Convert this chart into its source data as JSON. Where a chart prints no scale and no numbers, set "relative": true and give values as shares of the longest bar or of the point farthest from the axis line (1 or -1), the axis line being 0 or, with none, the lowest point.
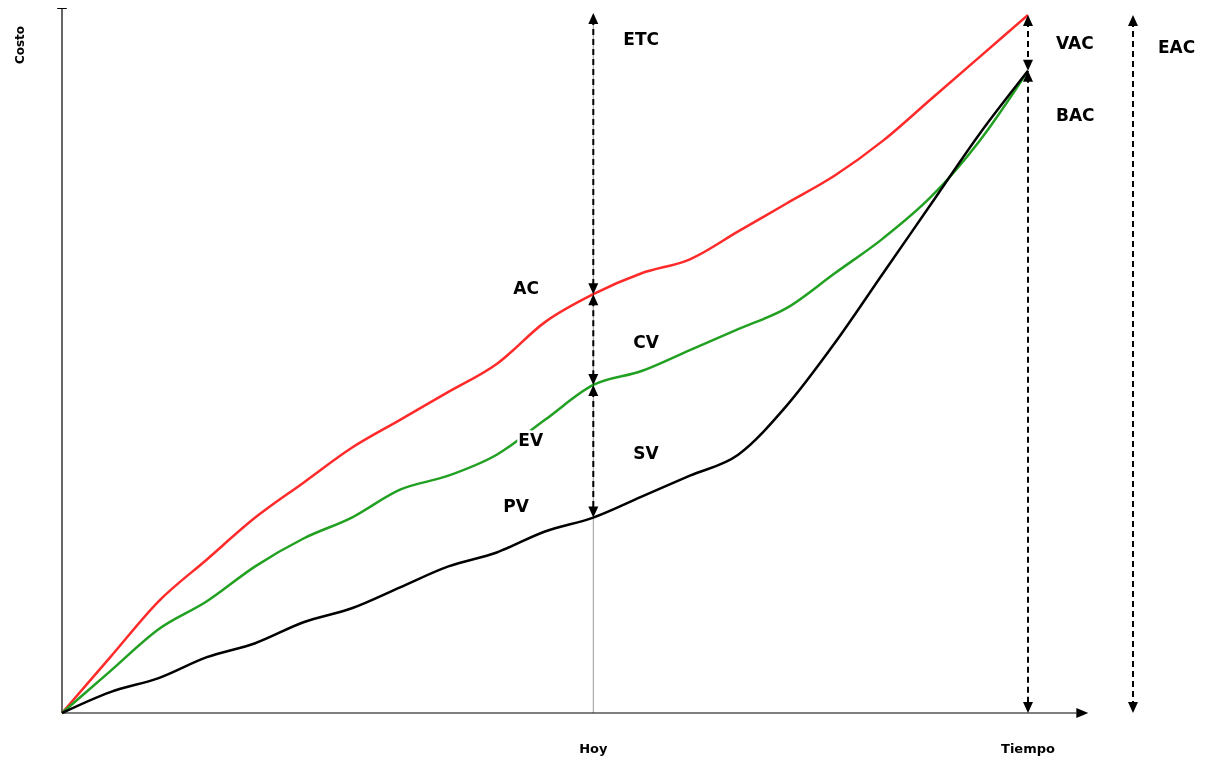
{
  "chart_data": {
    "type": "line",
    "relative": true,
    "ylabel": "Costo",
    "legend": false,
    "marker": "none",
    "categories": [
      null,
      null,
      null,
      null,
      null,
      null,
      null,
      null,
      null,
      null,
      null,
      "Hoy",
      null,
      null,
      null,
      null,
      null,
      null,
      null,
      null,
      "Tiempo"
    ],
    "series": [
      {
        "name": "AC",
        "color": "#ff2a2a",
        "values": [
          0,
          0.08,
          0.16,
          0.22,
          0.28,
          0.33,
          0.38,
          0.42,
          0.46,
          0.5,
          0.56,
          0.6,
          0.63,
          0.65,
          0.69,
          0.73,
          0.77,
          0.82,
          0.88,
          0.94,
          1
        ]
      },
      {
        "name": "EV",
        "color": "#22a022",
        "values": [
          0,
          0.06,
          0.12,
          0.16,
          0.21,
          0.25,
          0.28,
          0.32,
          0.34,
          0.37,
          0.42,
          0.47,
          0.49,
          0.52,
          0.55,
          0.58,
          0.63,
          0.68,
          0.74,
          0.82,
          0.92
        ]
      },
      {
        "name": "PV",
        "color": "#000000",
        "values": [
          0,
          0.03,
          0.05,
          0.08,
          0.1,
          0.13,
          0.15,
          0.18,
          0.21,
          0.23,
          0.26,
          0.28,
          0.31,
          0.34,
          0.37,
          0.44,
          0.53,
          0.63,
          0.73,
          0.83,
          0.92
        ]
      }
    ],
    "ref_lines": [
      {
        "axis": "x",
        "value": "Hoy",
        "color": "#999999"
      }
    ],
    "annotations": [
      "ETC",
      "CV",
      "SV",
      "VAC",
      "BAC",
      "EAC"
    ]
  }
}
